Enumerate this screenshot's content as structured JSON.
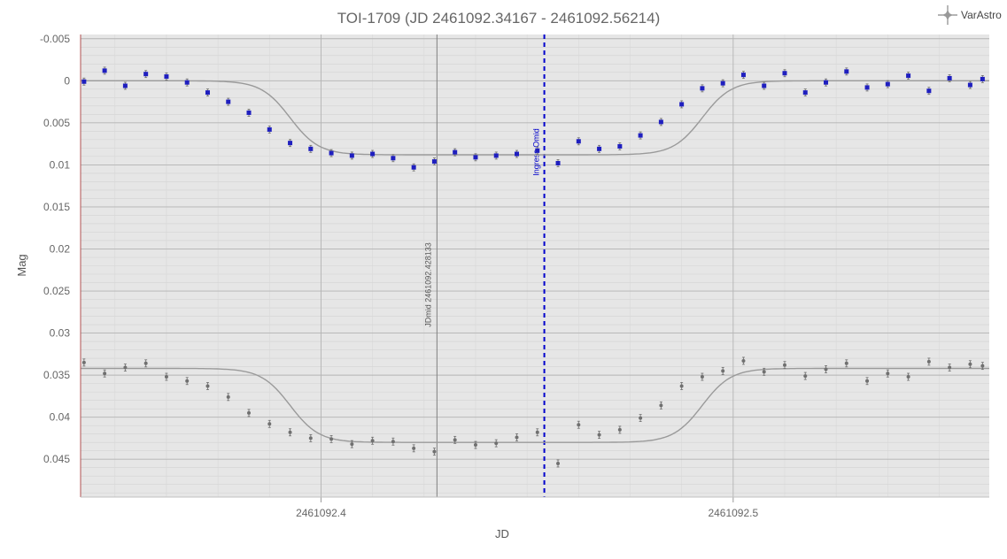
{
  "chart_data": {
    "type": "scatter",
    "title": "TOI-1709 (JD 2461092.34167 - 2461092.56214)",
    "xlabel": "JD",
    "ylabel": "Mag",
    "xlim": [
      2461092.34167,
      2461092.56214
    ],
    "ylim": [
      -0.0055,
      0.0495
    ],
    "y_inverted": true,
    "xticks": [
      2461092.4,
      2461092.5
    ],
    "xtick_labels": [
      "2461092.4",
      "2461092.5"
    ],
    "yticks": [
      -0.005,
      0,
      0.005,
      0.01,
      0.015,
      0.02,
      0.025,
      0.03,
      0.035,
      0.04,
      0.045
    ],
    "ytick_labels": [
      "-0.005",
      "0",
      "0.005",
      "0.01",
      "0.015",
      "0.02",
      "0.025",
      "0.03",
      "0.035",
      "0.04",
      "0.045"
    ],
    "grid": true,
    "background": "#e6e6e6",
    "colors": {
      "target": "#1f1fbf",
      "comparison": "#707070",
      "model": "#9a9a9a",
      "ingress_marker": "#0000cc"
    },
    "series": [
      {
        "role": "target",
        "marker": "square",
        "baseline": 0.0,
        "depth": 0.0088,
        "x": [
          2461092.3425,
          2461092.3475,
          2461092.3525,
          2461092.3575,
          2461092.3625,
          2461092.3675,
          2461092.3725,
          2461092.3775,
          2461092.3825,
          2461092.3875,
          2461092.3925,
          2461092.3975,
          2461092.4025,
          2461092.4075,
          2461092.4125,
          2461092.4175,
          2461092.4225,
          2461092.4275,
          2461092.4325,
          2461092.4375,
          2461092.4425,
          2461092.4475,
          2461092.4525,
          2461092.4575,
          2461092.4625,
          2461092.4675,
          2461092.4725,
          2461092.4775,
          2461092.4825,
          2461092.4875,
          2461092.4925,
          2461092.4975,
          2461092.5025,
          2461092.5075,
          2461092.5125,
          2461092.5175,
          2461092.5225,
          2461092.5275,
          2461092.5325,
          2461092.5375,
          2461092.5425,
          2461092.5475,
          2461092.5525,
          2461092.5575,
          2461092.5605
        ],
        "y": [
          0.0001,
          -0.0012,
          0.0006,
          -0.0008,
          -0.0005,
          0.0002,
          0.0014,
          0.0025,
          0.0038,
          0.0058,
          0.0074,
          0.0081,
          0.0086,
          0.0089,
          0.0087,
          0.0092,
          0.0103,
          0.0096,
          0.0085,
          0.0091,
          0.0089,
          0.0087,
          0.0083,
          0.0098,
          0.0072,
          0.0081,
          0.0078,
          0.0065,
          0.0049,
          0.0028,
          0.0009,
          0.0003,
          -0.0007,
          0.0006,
          -0.0009,
          0.0014,
          0.0002,
          -0.0011,
          0.0008,
          0.0004,
          -0.0006,
          0.0012,
          -0.0003,
          0.0005,
          -0.0002
        ]
      },
      {
        "role": "comparison",
        "marker": "circle",
        "baseline": 0.0342,
        "depth": 0.0088,
        "x": [
          2461092.3425,
          2461092.3475,
          2461092.3525,
          2461092.3575,
          2461092.3625,
          2461092.3675,
          2461092.3725,
          2461092.3775,
          2461092.3825,
          2461092.3875,
          2461092.3925,
          2461092.3975,
          2461092.4025,
          2461092.4075,
          2461092.4125,
          2461092.4175,
          2461092.4225,
          2461092.4275,
          2461092.4325,
          2461092.4375,
          2461092.4425,
          2461092.4475,
          2461092.4525,
          2461092.4575,
          2461092.4625,
          2461092.4675,
          2461092.4725,
          2461092.4775,
          2461092.4825,
          2461092.4875,
          2461092.4925,
          2461092.4975,
          2461092.5025,
          2461092.5075,
          2461092.5125,
          2461092.5175,
          2461092.5225,
          2461092.5275,
          2461092.5325,
          2461092.5375,
          2461092.5425,
          2461092.5475,
          2461092.5525,
          2461092.5575,
          2461092.5605
        ],
        "y": [
          0.0335,
          0.0348,
          0.0341,
          0.0336,
          0.0352,
          0.0357,
          0.0363,
          0.0376,
          0.0395,
          0.0408,
          0.0418,
          0.0425,
          0.0426,
          0.0432,
          0.0428,
          0.0429,
          0.0437,
          0.0441,
          0.0427,
          0.0433,
          0.0431,
          0.0424,
          0.0418,
          0.0455,
          0.0409,
          0.0421,
          0.0415,
          0.0401,
          0.0386,
          0.0363,
          0.0352,
          0.0345,
          0.0333,
          0.0346,
          0.0338,
          0.0351,
          0.0343,
          0.0336,
          0.0357,
          0.0348,
          0.0352,
          0.0334,
          0.0341,
          0.0337,
          0.0339
        ]
      }
    ],
    "vertical_lines": [
      {
        "x": 2461092.42813,
        "label": "JDmid 2461092.428133",
        "style": "solid"
      },
      {
        "x": 2461092.45418,
        "label": "Ingress Omid",
        "style": "dashed"
      }
    ]
  },
  "logo": {
    "text": "VarAstro",
    "icon": "crosshair-star-icon"
  }
}
